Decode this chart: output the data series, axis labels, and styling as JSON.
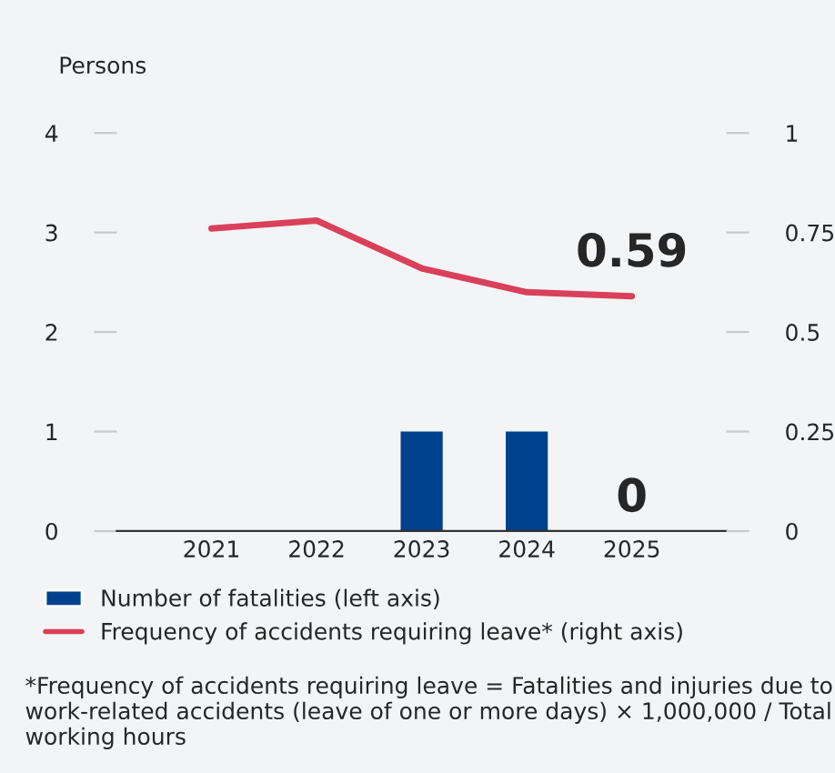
{
  "chart_data": {
    "type": "bar",
    "ylabel": "Persons",
    "categories": [
      "2021",
      "2022",
      "2023",
      "2024",
      "2025"
    ],
    "series": [
      {
        "name": "Number of fatalities (left axis)",
        "color": "#00418e",
        "values": [
          0,
          0,
          1,
          1,
          0
        ],
        "value_labels": [
          null,
          null,
          null,
          null,
          "0"
        ]
      },
      {
        "name": "Frequency of accidents requiring leave* (right axis)",
        "type": "line",
        "axis": "y2",
        "color": "#d9405a",
        "values": [
          0.76,
          0.78,
          0.66,
          0.6,
          0.59
        ],
        "value_labels": [
          null,
          null,
          null,
          null,
          "0.59"
        ]
      }
    ],
    "ylim": [
      0,
      4
    ],
    "yticks": [
      0,
      1,
      2,
      3,
      4
    ],
    "y2lim": [
      0,
      1
    ],
    "y2ticks": [
      0,
      0.25,
      0.5,
      0.75,
      1
    ],
    "grid": false,
    "legend": "bottom",
    "annotations": [
      "*Frequency of accidents requiring leave = Fatalities and injuries due to work-related accidents (leave of one or more days) × 1,000,000 / Total working hours"
    ]
  }
}
